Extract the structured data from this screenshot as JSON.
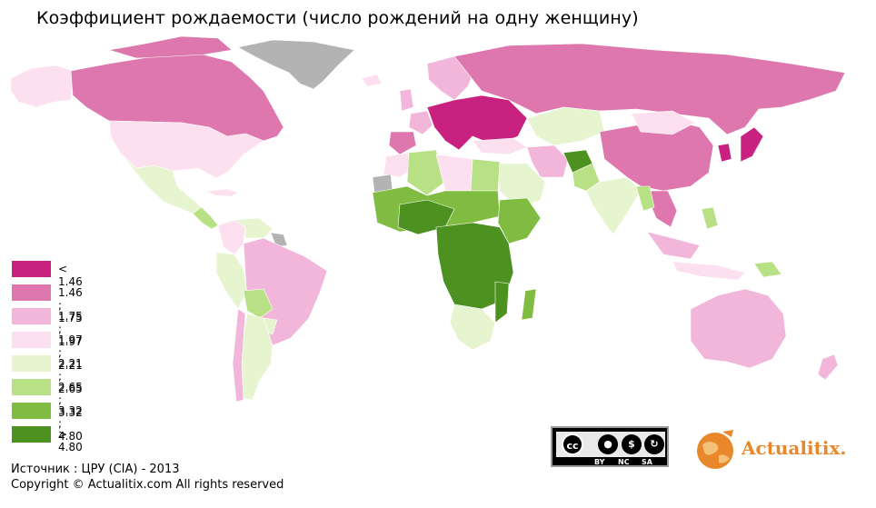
{
  "title": "Коэффициент рождаемости (число рождений на одну женщину)",
  "legend": [
    {
      "label": "< 1.46",
      "color": "#c8217f"
    },
    {
      "label": "1.46 ; 1.75",
      "color": "#de77ae"
    },
    {
      "label": "1.75 ; 1.97",
      "color": "#f1b6da"
    },
    {
      "label": "1.97 ; 2.21",
      "color": "#fde0ef"
    },
    {
      "label": "2.21 ; 2.65",
      "color": "#e6f5d0"
    },
    {
      "label": "2.65 ; 3.32",
      "color": "#b8e186"
    },
    {
      "label": "3.32 ; 4.80",
      "color": "#7fbc41"
    },
    {
      "label": "> 4.80",
      "color": "#4d9221"
    }
  ],
  "no_data_color": "#b3b3b3",
  "source": "Источник : ЦРУ (CIA) - 2013",
  "copyright": "Copyright © Actualitix.com All rights reserved",
  "cc_badge": {
    "main": "cc",
    "labels": [
      "BY",
      "NC",
      "SA"
    ]
  },
  "logo": {
    "text": "Actualitix",
    "dot": "."
  }
}
